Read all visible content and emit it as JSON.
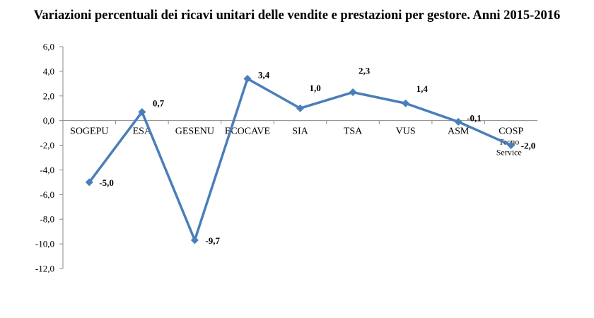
{
  "chart_data": {
    "type": "line",
    "title": "Variazioni percentuali dei ricavi unitari delle vendite e prestazioni per gestore. Anni 2015-2016",
    "categories": [
      [
        "SOGEPU"
      ],
      [
        "ESA"
      ],
      [
        "GESENU"
      ],
      [
        "ECOCAVE"
      ],
      [
        "SIA"
      ],
      [
        "TSA"
      ],
      [
        "VUS"
      ],
      [
        "ASM"
      ],
      [
        "COSP",
        "Tecno",
        "Service"
      ]
    ],
    "series": [
      {
        "values": [
          -5.0,
          0.7,
          -9.7,
          3.4,
          1.0,
          2.3,
          1.4,
          -0.1,
          -2.0
        ]
      }
    ],
    "data_labels": [
      "-5,0",
      "0,7",
      "-9,7",
      "3,4",
      "1,0",
      "2,3",
      "1,4",
      "-0,1",
      "-2,0"
    ],
    "ylim": [
      -12,
      6
    ],
    "yticks": [
      6,
      4,
      2,
      0,
      -2,
      -4,
      -6,
      -8,
      -10,
      -12
    ],
    "ytick_labels": [
      "6,0",
      "4,0",
      "2,0",
      "0,0",
      "-2,0",
      "-4,0",
      "-6,0",
      "-8,0",
      "-10,0",
      "-12,0"
    ],
    "grid": false,
    "line_color": "#4a7ebb",
    "xlabel": "",
    "ylabel": ""
  }
}
